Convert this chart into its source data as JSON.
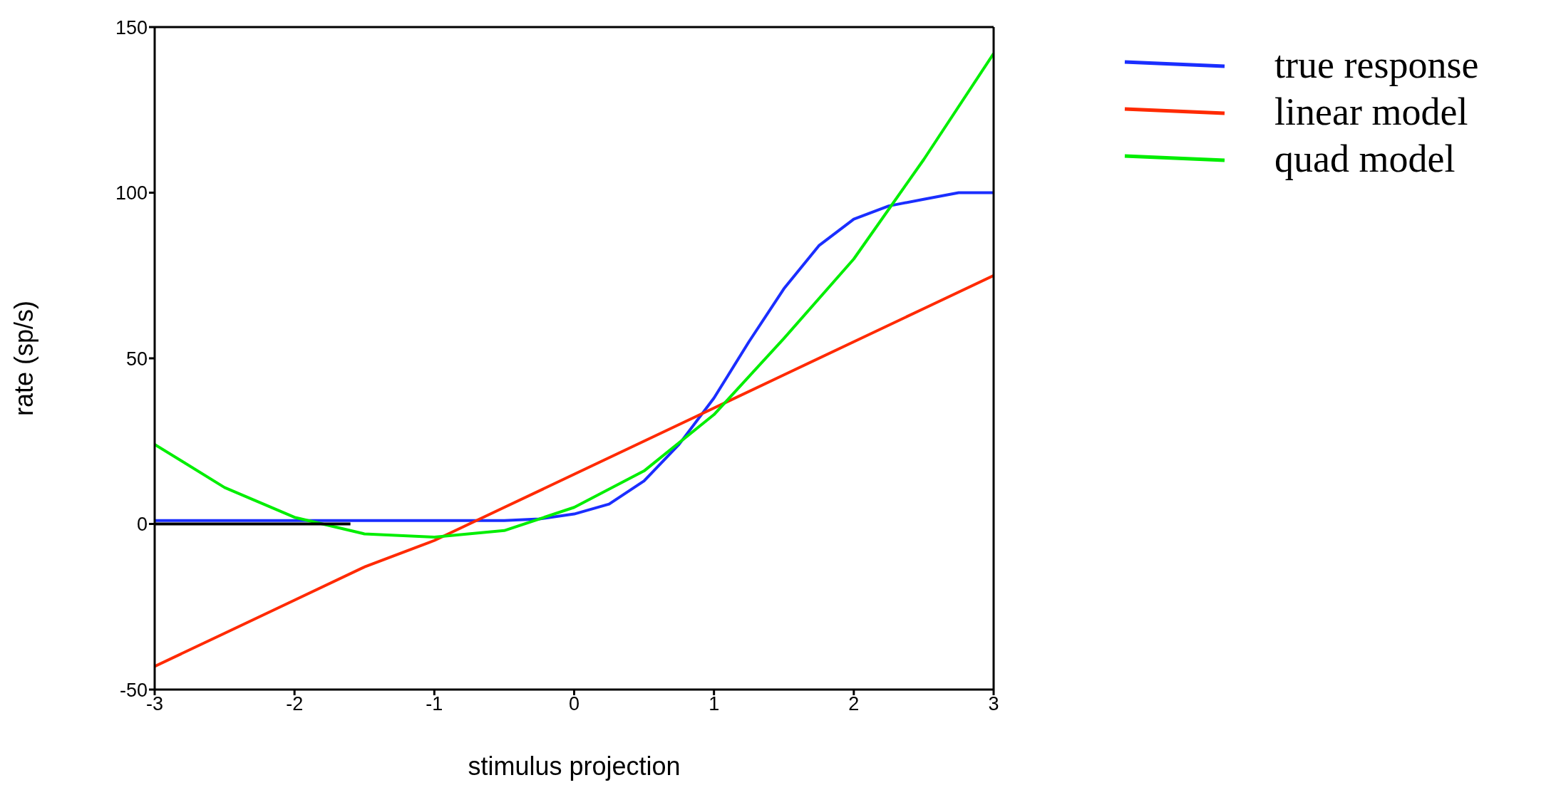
{
  "chart_data": {
    "type": "line",
    "xlabel": "stimulus projection",
    "ylabel": "rate (sp/s)",
    "xlim": [
      -3,
      3
    ],
    "ylim": [
      -50,
      150
    ],
    "xticks": [
      -3,
      -2,
      -1,
      0,
      1,
      2,
      3
    ],
    "yticks": [
      -50,
      0,
      50,
      100,
      150
    ],
    "legend": "right",
    "marker": "none",
    "line_style": "solid",
    "series": [
      {
        "name": "true response",
        "color": "#1a2eff",
        "x": [
          -3,
          -2,
          -1,
          -0.5,
          -0.25,
          0,
          0.25,
          0.5,
          0.75,
          1,
          1.25,
          1.5,
          1.75,
          2,
          2.25,
          2.5,
          2.75,
          3
        ],
        "values": [
          1,
          1,
          1,
          1,
          1.5,
          3,
          6,
          13,
          24,
          38,
          55,
          71,
          84,
          92,
          96,
          98,
          100,
          100
        ]
      },
      {
        "name": "linear model",
        "color": "#ff2a00",
        "x": [
          -3,
          -2.5,
          -2,
          -1.5,
          -1,
          -0.5,
          0,
          0.5,
          1,
          1.5,
          2,
          2.5,
          3
        ],
        "values": [
          -43,
          -33,
          -23,
          -13,
          -5,
          5,
          15,
          25,
          35,
          45,
          55,
          65,
          75
        ]
      },
      {
        "name": "quad model",
        "color": "#00ee00",
        "x": [
          -3,
          -2.5,
          -2,
          -1.5,
          -1,
          -0.5,
          0,
          0.5,
          1,
          1.5,
          2,
          2.5,
          3
        ],
        "values": [
          24,
          11,
          2,
          -3,
          -4,
          -2,
          5,
          16,
          33,
          56,
          80,
          110,
          142
        ]
      },
      {
        "color": "#000000",
        "x": [
          -3,
          -1.6
        ],
        "values": [
          0,
          0
        ]
      }
    ]
  }
}
